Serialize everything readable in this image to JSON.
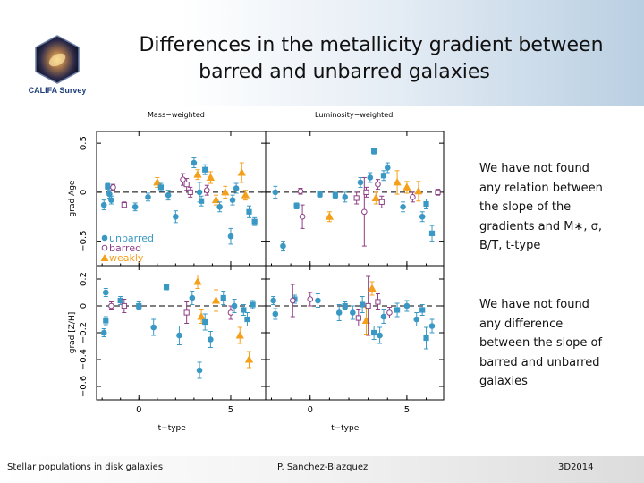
{
  "slide": {
    "title_line1": "Differences in the metallicity gradient between",
    "title_line2": "barred and unbarred galaxies",
    "logo_text": "CALIFA Survey",
    "col_label_left": "Mass−weighted",
    "col_label_right": "Luminosity−weighted",
    "text_block1": "We have not found any relation between the slope of the gradients and M∗, σ, B/T, t-type",
    "text_block2": "We have not found any difference between the slope of barred and unbarred galaxies",
    "footer_left": "Stellar populations in disk galaxies",
    "footer_center": "P. Sanchez-Blazquez",
    "footer_right": "3D2014"
  },
  "colors": {
    "unbarred": "#3a98c4",
    "barred": "#8e3f86",
    "weakly": "#f5a01a",
    "axis": "#000000"
  },
  "chart_data": {
    "type": "scatter",
    "x_ticks": [
      0,
      5
    ],
    "xlabel": "t−type",
    "xlim": [
      -2.3,
      6.9
    ],
    "legend": {
      "position": "bottom-left",
      "entries": [
        "unbarred",
        "barred",
        "weakly"
      ]
    },
    "rows": [
      {
        "ylabel": "grad Age",
        "ylim": [
          -0.75,
          0.62
        ],
        "y_ticks": [
          0.5,
          0,
          -0.5
        ],
        "y_tick_labels": [
          "0.5",
          "0",
          "−0.5"
        ]
      },
      {
        "ylabel": "grad [Z/H]",
        "ylim": [
          -0.7,
          0.3
        ],
        "y_ticks": [
          0.2,
          0,
          -0.2,
          -0.4,
          -0.6
        ],
        "y_tick_labels": [
          "0.2",
          "0",
          "−0.2",
          "−0.4",
          "−0.6"
        ]
      }
    ],
    "panels": [
      {
        "name": "mass-age",
        "col": "Mass−weighted",
        "row": "grad Age",
        "points": [
          {
            "x": -1.9,
            "y": -0.13,
            "e": 0.05,
            "g": "u",
            "m": "o"
          },
          {
            "x": -1.7,
            "y": 0.06,
            "e": 0.03,
            "g": "u",
            "m": "s"
          },
          {
            "x": -1.6,
            "y": -0.02,
            "e": 0.04,
            "g": "u",
            "m": "o"
          },
          {
            "x": -1.5,
            "y": -0.08,
            "e": 0.04,
            "g": "u",
            "m": "o"
          },
          {
            "x": -1.4,
            "y": 0.05,
            "e": 0.03,
            "g": "b",
            "m": "o"
          },
          {
            "x": -0.8,
            "y": -0.13,
            "e": 0.03,
            "g": "b",
            "m": "s"
          },
          {
            "x": -0.2,
            "y": -0.15,
            "e": 0.04,
            "g": "u",
            "m": "o"
          },
          {
            "x": 0.5,
            "y": -0.05,
            "e": 0.04,
            "g": "u",
            "m": "o"
          },
          {
            "x": 1.0,
            "y": 0.1,
            "e": 0.05,
            "g": "w",
            "m": "t"
          },
          {
            "x": 1.2,
            "y": 0.05,
            "e": 0.04,
            "g": "u",
            "m": "s"
          },
          {
            "x": 1.6,
            "y": -0.03,
            "e": 0.05,
            "g": "u",
            "m": "o"
          },
          {
            "x": 2.0,
            "y": -0.25,
            "e": 0.06,
            "g": "u",
            "m": "o"
          },
          {
            "x": 2.4,
            "y": 0.13,
            "e": 0.06,
            "g": "b",
            "m": "o"
          },
          {
            "x": 2.6,
            "y": 0.08,
            "e": 0.06,
            "g": "b",
            "m": "s"
          },
          {
            "x": 2.8,
            "y": 0.0,
            "e": 0.05,
            "g": "b",
            "m": "s"
          },
          {
            "x": 3.0,
            "y": 0.3,
            "e": 0.05,
            "g": "u",
            "m": "o"
          },
          {
            "x": 3.2,
            "y": 0.18,
            "e": 0.05,
            "g": "w",
            "m": "t"
          },
          {
            "x": 3.3,
            "y": 0.0,
            "e": 0.1,
            "g": "u",
            "m": "o"
          },
          {
            "x": 3.4,
            "y": -0.09,
            "e": 0.05,
            "g": "u",
            "m": "s"
          },
          {
            "x": 3.6,
            "y": 0.23,
            "e": 0.05,
            "g": "u",
            "m": "s"
          },
          {
            "x": 3.7,
            "y": 0.02,
            "e": 0.05,
            "g": "b",
            "m": "o"
          },
          {
            "x": 3.9,
            "y": 0.15,
            "e": 0.06,
            "g": "w",
            "m": "t"
          },
          {
            "x": 4.2,
            "y": -0.08,
            "e": 0.05,
            "g": "w",
            "m": "t"
          },
          {
            "x": 4.4,
            "y": -0.15,
            "e": 0.05,
            "g": "u",
            "m": "o"
          },
          {
            "x": 4.7,
            "y": 0.0,
            "e": 0.06,
            "g": "w",
            "m": "t"
          },
          {
            "x": 5.0,
            "y": -0.45,
            "e": 0.08,
            "g": "u",
            "m": "o"
          },
          {
            "x": 5.3,
            "y": 0.04,
            "e": 0.05,
            "g": "u",
            "m": "o"
          },
          {
            "x": 5.6,
            "y": 0.2,
            "e": 0.1,
            "g": "w",
            "m": "t"
          },
          {
            "x": 5.8,
            "y": -0.03,
            "e": 0.05,
            "g": "w",
            "m": "t"
          },
          {
            "x": 6.0,
            "y": -0.2,
            "e": 0.06,
            "g": "u",
            "m": "s"
          },
          {
            "x": 6.3,
            "y": -0.3,
            "e": 0.04,
            "g": "u",
            "m": "s"
          },
          {
            "x": 5.1,
            "y": -0.08,
            "e": 0.05,
            "g": "u",
            "m": "o"
          }
        ]
      },
      {
        "name": "lum-age",
        "col": "Luminosity−weighted",
        "row": "grad Age",
        "points": [
          {
            "x": -1.8,
            "y": 0.0,
            "e": 0.06,
            "g": "u",
            "m": "o"
          },
          {
            "x": -1.4,
            "y": -0.55,
            "e": 0.05,
            "g": "u",
            "m": "o"
          },
          {
            "x": -0.5,
            "y": 0.01,
            "e": 0.03,
            "g": "b",
            "m": "o"
          },
          {
            "x": -0.7,
            "y": -0.14,
            "e": 0.03,
            "g": "u",
            "m": "s"
          },
          {
            "x": -0.4,
            "y": -0.25,
            "e": 0.12,
            "g": "b",
            "m": "o"
          },
          {
            "x": 0.5,
            "y": -0.02,
            "e": 0.03,
            "g": "u",
            "m": "s"
          },
          {
            "x": 1.0,
            "y": -0.25,
            "e": 0.05,
            "g": "w",
            "m": "t"
          },
          {
            "x": 1.3,
            "y": -0.03,
            "e": 0.03,
            "g": "u",
            "m": "s"
          },
          {
            "x": 1.8,
            "y": -0.05,
            "e": 0.05,
            "g": "u",
            "m": "o"
          },
          {
            "x": 2.4,
            "y": -0.06,
            "e": 0.06,
            "g": "b",
            "m": "s"
          },
          {
            "x": 2.6,
            "y": 0.1,
            "e": 0.05,
            "g": "u",
            "m": "o"
          },
          {
            "x": 2.8,
            "y": -0.2,
            "e": 0.35,
            "g": "b",
            "m": "o"
          },
          {
            "x": 2.9,
            "y": 0.0,
            "e": 0.05,
            "g": "b",
            "m": "s"
          },
          {
            "x": 3.1,
            "y": 0.15,
            "e": 0.05,
            "g": "u",
            "m": "o"
          },
          {
            "x": 3.3,
            "y": 0.42,
            "e": 0.03,
            "g": "u",
            "m": "s"
          },
          {
            "x": 3.4,
            "y": -0.06,
            "e": 0.06,
            "g": "w",
            "m": "t"
          },
          {
            "x": 3.5,
            "y": 0.08,
            "e": 0.05,
            "g": "b",
            "m": "o"
          },
          {
            "x": 3.7,
            "y": -0.1,
            "e": 0.06,
            "g": "b",
            "m": "s"
          },
          {
            "x": 3.8,
            "y": 0.17,
            "e": 0.05,
            "g": "u",
            "m": "s"
          },
          {
            "x": 4.0,
            "y": 0.25,
            "e": 0.05,
            "g": "u",
            "m": "o"
          },
          {
            "x": 4.5,
            "y": 0.1,
            "e": 0.12,
            "g": "w",
            "m": "t"
          },
          {
            "x": 4.8,
            "y": -0.15,
            "e": 0.05,
            "g": "u",
            "m": "o"
          },
          {
            "x": 5.0,
            "y": 0.05,
            "e": 0.06,
            "g": "w",
            "m": "t"
          },
          {
            "x": 5.3,
            "y": -0.05,
            "e": 0.05,
            "g": "b",
            "m": "o"
          },
          {
            "x": 5.6,
            "y": 0.01,
            "e": 0.1,
            "g": "w",
            "m": "t"
          },
          {
            "x": 5.8,
            "y": -0.25,
            "e": 0.05,
            "g": "u",
            "m": "o"
          },
          {
            "x": 6.0,
            "y": -0.12,
            "e": 0.05,
            "g": "u",
            "m": "s"
          },
          {
            "x": 6.3,
            "y": -0.42,
            "e": 0.08,
            "g": "u",
            "m": "s"
          },
          {
            "x": 6.6,
            "y": 0.0,
            "e": 0.03,
            "g": "b",
            "m": "s"
          }
        ]
      },
      {
        "name": "mass-metal",
        "col": "Mass−weighted",
        "row": "grad [Z/H]",
        "points": [
          {
            "x": -1.9,
            "y": -0.2,
            "e": 0.03,
            "g": "u",
            "m": "o"
          },
          {
            "x": -1.8,
            "y": -0.11,
            "e": 0.03,
            "g": "u",
            "m": "s"
          },
          {
            "x": -1.8,
            "y": 0.1,
            "e": 0.03,
            "g": "u",
            "m": "o"
          },
          {
            "x": -1.5,
            "y": 0.0,
            "e": 0.03,
            "g": "b",
            "m": "o"
          },
          {
            "x": -1.0,
            "y": 0.04,
            "e": 0.03,
            "g": "u",
            "m": "s"
          },
          {
            "x": -0.8,
            "y": 0.0,
            "e": 0.05,
            "g": "b",
            "m": "s"
          },
          {
            "x": 0.0,
            "y": 0.0,
            "e": 0.03,
            "g": "u",
            "m": "s"
          },
          {
            "x": 0.8,
            "y": -0.16,
            "e": 0.06,
            "g": "u",
            "m": "o"
          },
          {
            "x": 1.5,
            "y": 0.14,
            "e": 0.02,
            "g": "u",
            "m": "s"
          },
          {
            "x": 2.2,
            "y": -0.22,
            "e": 0.07,
            "g": "u",
            "m": "o"
          },
          {
            "x": 2.6,
            "y": -0.05,
            "e": 0.08,
            "g": "b",
            "m": "s"
          },
          {
            "x": 2.9,
            "y": 0.06,
            "e": 0.05,
            "g": "u",
            "m": "o"
          },
          {
            "x": 3.2,
            "y": 0.18,
            "e": 0.05,
            "g": "w",
            "m": "t"
          },
          {
            "x": 3.3,
            "y": -0.48,
            "e": 0.06,
            "g": "u",
            "m": "o"
          },
          {
            "x": 3.4,
            "y": -0.08,
            "e": 0.05,
            "g": "w",
            "m": "t"
          },
          {
            "x": 3.6,
            "y": -0.12,
            "e": 0.06,
            "g": "u",
            "m": "s"
          },
          {
            "x": 3.9,
            "y": -0.25,
            "e": 0.06,
            "g": "u",
            "m": "o"
          },
          {
            "x": 4.2,
            "y": 0.04,
            "e": 0.08,
            "g": "w",
            "m": "t"
          },
          {
            "x": 4.6,
            "y": 0.06,
            "e": 0.05,
            "g": "u",
            "m": "s"
          },
          {
            "x": 5.0,
            "y": -0.05,
            "e": 0.05,
            "g": "b",
            "m": "o"
          },
          {
            "x": 5.2,
            "y": 0.0,
            "e": 0.05,
            "g": "u",
            "m": "o"
          },
          {
            "x": 5.5,
            "y": -0.22,
            "e": 0.06,
            "g": "w",
            "m": "t"
          },
          {
            "x": 5.7,
            "y": -0.03,
            "e": 0.04,
            "g": "u",
            "m": "s"
          },
          {
            "x": 5.9,
            "y": -0.1,
            "e": 0.05,
            "g": "u",
            "m": "s"
          },
          {
            "x": 6.0,
            "y": -0.4,
            "e": 0.06,
            "g": "w",
            "m": "t"
          },
          {
            "x": 6.2,
            "y": 0.01,
            "e": 0.03,
            "g": "u",
            "m": "s"
          }
        ]
      },
      {
        "name": "lum-metal",
        "col": "Luminosity−weighted",
        "row": "grad [Z/H]",
        "points": [
          {
            "x": -1.9,
            "y": 0.04,
            "e": 0.03,
            "g": "u",
            "m": "o"
          },
          {
            "x": -1.8,
            "y": -0.06,
            "e": 0.04,
            "g": "u",
            "m": "o"
          },
          {
            "x": -0.8,
            "y": 0.05,
            "e": 0.03,
            "g": "u",
            "m": "s"
          },
          {
            "x": -0.9,
            "y": 0.04,
            "e": 0.12,
            "g": "b",
            "m": "o"
          },
          {
            "x": 0.0,
            "y": 0.05,
            "e": 0.05,
            "g": "b",
            "m": "o"
          },
          {
            "x": 0.4,
            "y": 0.04,
            "e": 0.05,
            "g": "u",
            "m": "o"
          },
          {
            "x": 1.5,
            "y": -0.05,
            "e": 0.06,
            "g": "u",
            "m": "o"
          },
          {
            "x": 1.8,
            "y": 0.0,
            "e": 0.03,
            "g": "u",
            "m": "s"
          },
          {
            "x": 2.2,
            "y": -0.05,
            "e": 0.05,
            "g": "u",
            "m": "o"
          },
          {
            "x": 2.5,
            "y": -0.09,
            "e": 0.06,
            "g": "b",
            "m": "s"
          },
          {
            "x": 2.7,
            "y": 0.01,
            "e": 0.06,
            "g": "u",
            "m": "s"
          },
          {
            "x": 2.9,
            "y": -0.11,
            "e": 0.1,
            "g": "w",
            "m": "t"
          },
          {
            "x": 3.0,
            "y": 0.0,
            "e": 0.22,
            "g": "b",
            "m": "s"
          },
          {
            "x": 3.2,
            "y": 0.13,
            "e": 0.05,
            "g": "w",
            "m": "t"
          },
          {
            "x": 3.3,
            "y": -0.2,
            "e": 0.05,
            "g": "u",
            "m": "s"
          },
          {
            "x": 3.5,
            "y": 0.03,
            "e": 0.06,
            "g": "b",
            "m": "s"
          },
          {
            "x": 3.6,
            "y": -0.22,
            "e": 0.06,
            "g": "u",
            "m": "o"
          },
          {
            "x": 3.8,
            "y": -0.08,
            "e": 0.05,
            "g": "u",
            "m": "o"
          },
          {
            "x": 4.1,
            "y": -0.05,
            "e": 0.04,
            "g": "b",
            "m": "o"
          },
          {
            "x": 4.5,
            "y": -0.03,
            "e": 0.05,
            "g": "u",
            "m": "s"
          },
          {
            "x": 5.0,
            "y": 0.0,
            "e": 0.04,
            "g": "u",
            "m": "o"
          },
          {
            "x": 5.5,
            "y": -0.1,
            "e": 0.05,
            "g": "u",
            "m": "o"
          },
          {
            "x": 5.8,
            "y": -0.03,
            "e": 0.04,
            "g": "u",
            "m": "s"
          },
          {
            "x": 6.0,
            "y": -0.24,
            "e": 0.08,
            "g": "u",
            "m": "s"
          },
          {
            "x": 6.3,
            "y": -0.15,
            "e": 0.05,
            "g": "u",
            "m": "o"
          }
        ]
      }
    ]
  }
}
